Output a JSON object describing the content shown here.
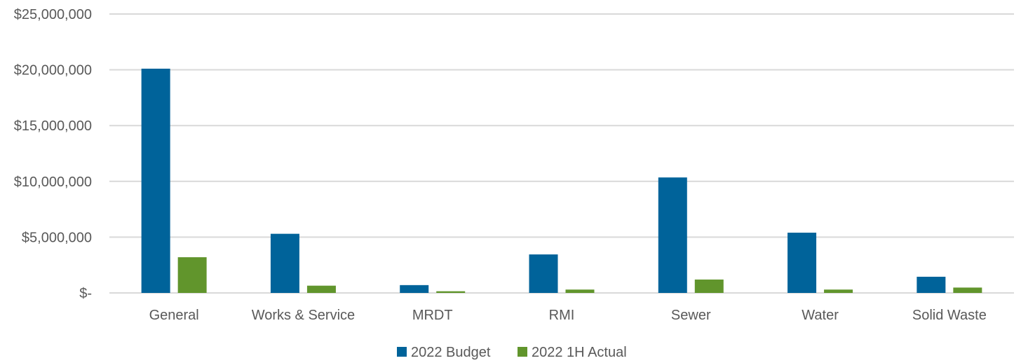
{
  "chart_data": {
    "type": "bar",
    "categories": [
      "General",
      "Works & Service",
      "MRDT",
      "RMI",
      "Sewer",
      "Water",
      "Solid Waste"
    ],
    "series": [
      {
        "name": "2022 Budget",
        "color": "#00639a",
        "values": [
          20100000,
          5300000,
          700000,
          3450000,
          10350000,
          5400000,
          1450000
        ]
      },
      {
        "name": "2022 1H Actual",
        "color": "#61952c",
        "values": [
          3200000,
          650000,
          150000,
          300000,
          1200000,
          300000,
          480000
        ]
      }
    ],
    "y_ticks": [
      {
        "value": 0,
        "label": "$-"
      },
      {
        "value": 5000000,
        "label": "$5,000,000"
      },
      {
        "value": 10000000,
        "label": "$10,000,000"
      },
      {
        "value": 15000000,
        "label": "$15,000,000"
      },
      {
        "value": 20000000,
        "label": "$20,000,000"
      },
      {
        "value": 25000000,
        "label": "$25,000,000"
      }
    ],
    "ylim": [
      0,
      25000000
    ],
    "grid": true,
    "legend_position": "bottom-center",
    "title": "",
    "xlabel": "",
    "ylabel": ""
  }
}
